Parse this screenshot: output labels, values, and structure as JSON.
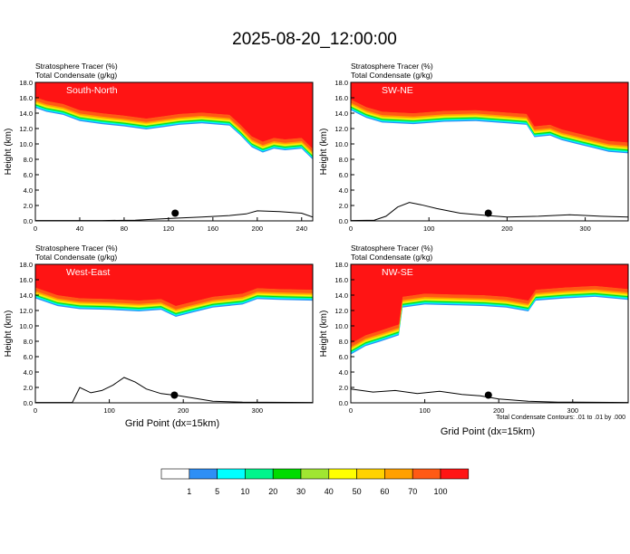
{
  "title": "2025-08-20_12:00:00",
  "panel_header": [
    "Stratosphere Tracer   (%)",
    "Total Condensate   (g/kg)"
  ],
  "ylabel": "Height (km)",
  "xlabel": "Grid Point (dx=15km)",
  "contour_note": "Total Condensate Contours: .01 to .01 by .000",
  "colorbar": {
    "colors": [
      "#ffffff",
      "#2e8ff5",
      "#00ffff",
      "#00f58c",
      "#00dc00",
      "#a0e632",
      "#ffff00",
      "#ffd200",
      "#ffa000",
      "#ff5a14",
      "#ff1414"
    ],
    "labels": [
      "1",
      "5",
      "10",
      "20",
      "30",
      "40",
      "50",
      "60",
      "70",
      "100"
    ]
  },
  "chart_data": [
    {
      "type": "heatmap",
      "name": "South-North",
      "xlim": [
        0,
        250
      ],
      "xticks": [
        0,
        40,
        80,
        120,
        160,
        200,
        240
      ],
      "ylim": [
        0,
        18
      ],
      "yticks": [
        "0.0",
        "2.0",
        "4.0",
        "6.0",
        "8.0",
        "10.0",
        "12.0",
        "14.0",
        "16.0",
        "18.0"
      ],
      "tracer_edge_km": [
        [
          0,
          16.1
        ],
        [
          10,
          15.6
        ],
        [
          25,
          15.2
        ],
        [
          40,
          14.4
        ],
        [
          60,
          14.0
        ],
        [
          80,
          13.7
        ],
        [
          100,
          13.3
        ],
        [
          115,
          13.6
        ],
        [
          130,
          13.9
        ],
        [
          150,
          14.1
        ],
        [
          175,
          13.8
        ],
        [
          185,
          12.5
        ],
        [
          195,
          11.0
        ],
        [
          205,
          10.3
        ],
        [
          215,
          10.8
        ],
        [
          225,
          10.6
        ],
        [
          240,
          10.8
        ],
        [
          250,
          9.4
        ]
      ],
      "terrain_km": [
        [
          0,
          0.05
        ],
        [
          60,
          0.05
        ],
        [
          90,
          0.1
        ],
        [
          120,
          0.3
        ],
        [
          150,
          0.5
        ],
        [
          175,
          0.7
        ],
        [
          190,
          0.9
        ],
        [
          200,
          1.3
        ],
        [
          220,
          1.2
        ],
        [
          240,
          1.0
        ],
        [
          250,
          0.5
        ]
      ],
      "marker": [
        126,
        1.0
      ]
    },
    {
      "type": "heatmap",
      "name": "SW-NE",
      "xlim": [
        0,
        355
      ],
      "xticks": [
        0,
        100,
        200,
        300
      ],
      "ylim": [
        0,
        18
      ],
      "yticks": [
        "0.0",
        "2.0",
        "4.0",
        "6.0",
        "8.0",
        "10.0",
        "12.0",
        "14.0",
        "16.0",
        "18.0"
      ],
      "tracer_edge_km": [
        [
          0,
          15.8
        ],
        [
          20,
          14.8
        ],
        [
          40,
          14.2
        ],
        [
          80,
          14.0
        ],
        [
          120,
          14.3
        ],
        [
          160,
          14.4
        ],
        [
          200,
          14.1
        ],
        [
          225,
          13.9
        ],
        [
          235,
          12.3
        ],
        [
          255,
          12.5
        ],
        [
          270,
          11.9
        ],
        [
          290,
          11.4
        ],
        [
          310,
          10.9
        ],
        [
          330,
          10.4
        ],
        [
          355,
          10.2
        ]
      ],
      "terrain_km": [
        [
          0,
          0.05
        ],
        [
          30,
          0.1
        ],
        [
          45,
          0.6
        ],
        [
          60,
          1.8
        ],
        [
          75,
          2.4
        ],
        [
          90,
          2.1
        ],
        [
          110,
          1.6
        ],
        [
          140,
          1.0
        ],
        [
          175,
          0.7
        ],
        [
          200,
          0.5
        ],
        [
          240,
          0.6
        ],
        [
          280,
          0.8
        ],
        [
          320,
          0.6
        ],
        [
          355,
          0.5
        ]
      ],
      "marker": [
        176,
        1.0
      ]
    },
    {
      "type": "heatmap",
      "name": "West-East",
      "xlim": [
        0,
        375
      ],
      "xticks": [
        0,
        100,
        200,
        300
      ],
      "ylim": [
        0,
        18
      ],
      "yticks": [
        "0.0",
        "2.0",
        "4.0",
        "6.0",
        "8.0",
        "10.0",
        "12.0",
        "14.0",
        "16.0",
        "18.0"
      ],
      "tracer_edge_km": [
        [
          0,
          15.0
        ],
        [
          30,
          14.0
        ],
        [
          60,
          13.6
        ],
        [
          100,
          13.5
        ],
        [
          140,
          13.3
        ],
        [
          170,
          13.5
        ],
        [
          190,
          12.6
        ],
        [
          210,
          13.1
        ],
        [
          240,
          13.8
        ],
        [
          280,
          14.2
        ],
        [
          300,
          14.9
        ],
        [
          330,
          14.8
        ],
        [
          375,
          14.7
        ]
      ],
      "terrain_km": [
        [
          0,
          0.05
        ],
        [
          50,
          0.05
        ],
        [
          60,
          2.0
        ],
        [
          75,
          1.3
        ],
        [
          90,
          1.6
        ],
        [
          105,
          2.3
        ],
        [
          120,
          3.3
        ],
        [
          135,
          2.7
        ],
        [
          150,
          1.8
        ],
        [
          170,
          1.2
        ],
        [
          195,
          0.9
        ],
        [
          240,
          0.2
        ],
        [
          280,
          0.1
        ],
        [
          375,
          0.05
        ]
      ],
      "marker": [
        188,
        1.0
      ]
    },
    {
      "type": "heatmap",
      "name": "NW-SE",
      "xlim": [
        0,
        375
      ],
      "xticks": [
        0,
        100,
        200,
        300
      ],
      "ylim": [
        0,
        18
      ],
      "yticks": [
        "0.0",
        "2.0",
        "4.0",
        "6.0",
        "8.0",
        "10.0",
        "12.0",
        "14.0",
        "16.0",
        "18.0"
      ],
      "tracer_edge_km": [
        [
          0,
          7.7
        ],
        [
          20,
          8.8
        ],
        [
          40,
          9.4
        ],
        [
          65,
          10.2
        ],
        [
          70,
          13.8
        ],
        [
          100,
          14.2
        ],
        [
          140,
          14.1
        ],
        [
          180,
          14.0
        ],
        [
          210,
          13.8
        ],
        [
          240,
          13.3
        ],
        [
          250,
          14.7
        ],
        [
          290,
          15.0
        ],
        [
          330,
          15.2
        ],
        [
          375,
          14.8
        ]
      ],
      "terrain_km": [
        [
          0,
          1.8
        ],
        [
          30,
          1.4
        ],
        [
          60,
          1.6
        ],
        [
          90,
          1.2
        ],
        [
          120,
          1.5
        ],
        [
          150,
          1.1
        ],
        [
          175,
          0.9
        ],
        [
          200,
          0.5
        ],
        [
          240,
          0.2
        ],
        [
          280,
          0.1
        ],
        [
          375,
          0.05
        ]
      ],
      "marker": [
        186,
        1.0
      ]
    }
  ]
}
